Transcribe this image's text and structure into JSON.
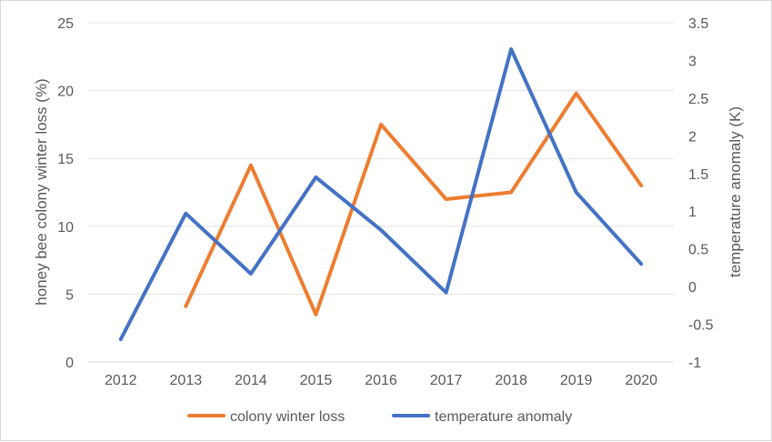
{
  "chart_data": {
    "type": "line",
    "categories": [
      "2012",
      "2013",
      "2014",
      "2015",
      "2016",
      "2017",
      "2018",
      "2019",
      "2020"
    ],
    "series": [
      {
        "name": "colony winter loss",
        "axis": "left",
        "color": "#ED7D31",
        "values": [
          null,
          4.1,
          14.5,
          3.5,
          17.5,
          12.0,
          12.5,
          19.8,
          13.0
        ]
      },
      {
        "name": "temperature anomaly",
        "axis": "right",
        "color": "#4472C4",
        "values": [
          -0.7,
          0.97,
          0.17,
          1.45,
          0.75,
          -0.08,
          3.15,
          1.25,
          0.3
        ]
      }
    ],
    "ylabel": "honey bee colony winter loss (%)",
    "ylabel_right": "temperature anomaly (K)",
    "ylim": [
      0,
      25
    ],
    "ylim_right": [
      -1,
      3.5
    ],
    "yticks": [
      "0",
      "5",
      "10",
      "15",
      "20",
      "25"
    ],
    "yticks_right": [
      "-1",
      "-0.5",
      "0",
      "0.5",
      "1",
      "1.5",
      "2",
      "2.5",
      "3",
      "3.5"
    ],
    "grid": true,
    "legend_position": "bottom"
  }
}
